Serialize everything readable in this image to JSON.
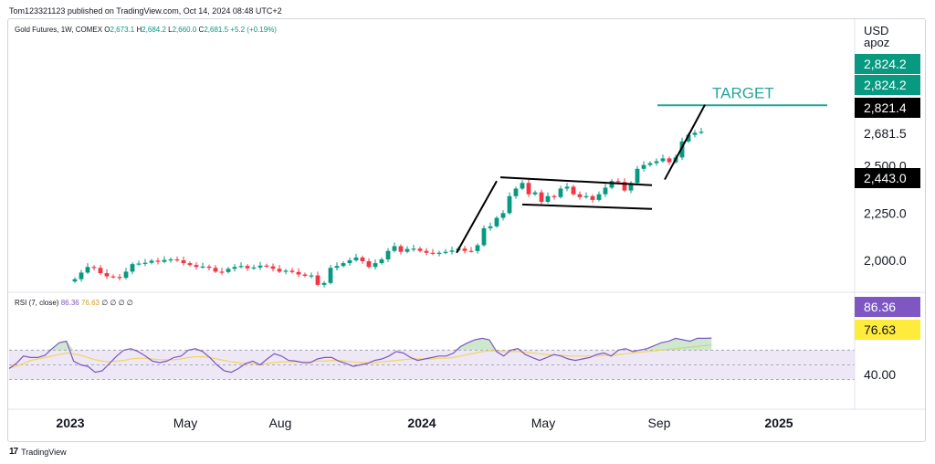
{
  "publisher_line": "Tom123321123 published on TradingView.com, Oct 14, 2024 08:48 UTC+2",
  "footer_brand": "TradingView",
  "legend": {
    "symbol": "Gold Futures, 1W, COMEX",
    "open_label": "O",
    "open": "2,673.1",
    "high_label": "H",
    "high": "2,684.2",
    "low_label": "L",
    "low": "2,660.0",
    "close_label": "C",
    "close": "2,681.5",
    "change": "+5.2 (+0.19%)"
  },
  "currency": "USD",
  "unit": "apoz",
  "target_label": "TARGET",
  "rsi_legend": {
    "name": "RSI (7, close)",
    "rsi_value": "86.36",
    "ma_value": "76.63",
    "extra": "∅ ∅ ∅ ∅"
  },
  "colors": {
    "up": "#089981",
    "down": "#f23645",
    "target": "#26a69a",
    "rsi": "#7e57c2",
    "rsi_ma": "#f5d55a",
    "rsi_band": "#ede7f6",
    "pattern": "#000000"
  },
  "chart_data": [
    {
      "type": "candlestick",
      "title": "Gold Futures, 1W, COMEX",
      "x_ticks": [
        "2023",
        "May",
        "Aug",
        "2024",
        "May",
        "Sep",
        "2025"
      ],
      "y_ticks": [
        "2,000.0",
        "2,250.0",
        "2,500.0"
      ],
      "ylim": [
        1850,
        2950
      ],
      "price_tags": [
        {
          "label": "2,824.2",
          "value": 2824.2,
          "style": "green"
        },
        {
          "label": "2,824.2",
          "value": 2824.2,
          "style": "green"
        },
        {
          "label": "2,821.4",
          "value": 2821.4,
          "style": "black"
        },
        {
          "label": "2,681.5",
          "value": 2681.5,
          "style": "plain"
        },
        {
          "label": "2,443.0",
          "value": 2443.0,
          "style": "black"
        }
      ],
      "target_level": 2821.4,
      "closes": [
        1900,
        1935,
        1965,
        1960,
        1932,
        1915,
        1912,
        1907,
        1940,
        1980,
        1983,
        1987,
        1998,
        1992,
        2002,
        2005,
        2000,
        1985,
        1975,
        1965,
        1967,
        1960,
        1940,
        1938,
        1955,
        1965,
        1970,
        1958,
        1962,
        1972,
        1968,
        1955,
        1940,
        1945,
        1938,
        1925,
        1918,
        1920,
        1870,
        1880,
        1960,
        1970,
        1985,
        2000,
        2015,
        1995,
        1965,
        1985,
        2005,
        2050,
        2075,
        2045,
        2060,
        2062,
        2050,
        2040,
        2035,
        2040,
        2045,
        2052,
        2062,
        2050,
        2049,
        2080,
        2170,
        2180,
        2225,
        2250,
        2340,
        2380,
        2410,
        2350,
        2360,
        2310,
        2340,
        2335,
        2380,
        2390,
        2350,
        2335,
        2340,
        2320,
        2350,
        2385,
        2420,
        2415,
        2370,
        2410,
        2485,
        2505,
        2515,
        2525,
        2540,
        2520,
        2545,
        2630,
        2665,
        2676,
        2681.5
      ],
      "rsi": [
        45,
        52,
        62,
        60,
        60,
        63,
        72,
        80,
        82,
        55,
        50,
        48,
        40,
        42,
        52,
        62,
        70,
        72,
        68,
        62,
        55,
        53,
        55,
        60,
        62,
        70,
        72,
        68,
        60,
        50,
        42,
        40,
        45,
        52,
        55,
        50,
        58,
        65,
        62,
        56,
        55,
        53,
        53,
        58,
        60,
        60,
        55,
        52,
        48,
        50,
        52,
        56,
        58,
        62,
        68,
        66,
        60,
        56,
        58,
        60,
        62,
        62,
        66,
        75,
        80,
        84,
        86,
        84,
        68,
        62,
        70,
        72,
        64,
        60,
        56,
        60,
        64,
        62,
        58,
        56,
        58,
        60,
        64,
        66,
        62,
        70,
        72,
        68,
        70,
        72,
        76,
        80,
        82,
        86,
        84,
        82,
        86,
        86,
        86.36
      ],
      "rsi_ma": [
        46,
        48,
        52,
        56,
        58,
        60,
        62,
        64,
        66,
        65,
        63,
        60,
        57,
        55,
        54,
        55,
        56,
        58,
        59,
        59,
        58,
        57,
        57,
        57,
        58,
        60,
        61,
        61,
        60,
        58,
        56,
        54,
        53,
        52,
        52,
        51,
        52,
        53,
        54,
        54,
        54,
        54,
        54,
        55,
        55,
        56,
        56,
        55,
        54,
        53,
        53,
        53,
        54,
        55,
        56,
        57,
        58,
        58,
        58,
        58,
        59,
        59,
        60,
        62,
        64,
        66,
        68,
        69,
        69,
        68,
        68,
        68,
        67,
        66,
        65,
        64,
        63,
        63,
        62,
        62,
        62,
        62,
        62,
        63,
        63,
        64,
        65,
        66,
        67,
        68,
        69,
        70,
        71,
        72,
        73,
        74,
        75,
        76,
        76.63
      ],
      "rsi_levels": {
        "upper": 70,
        "middle": 50,
        "lower": 30
      },
      "rsi_tags": [
        {
          "label": "86.36",
          "value": 86.36,
          "style": "purple"
        },
        {
          "label": "76.63",
          "value": 76.63,
          "style": "yellow"
        },
        {
          "label": "40.00",
          "value": 40,
          "style": "plain"
        }
      ]
    }
  ]
}
